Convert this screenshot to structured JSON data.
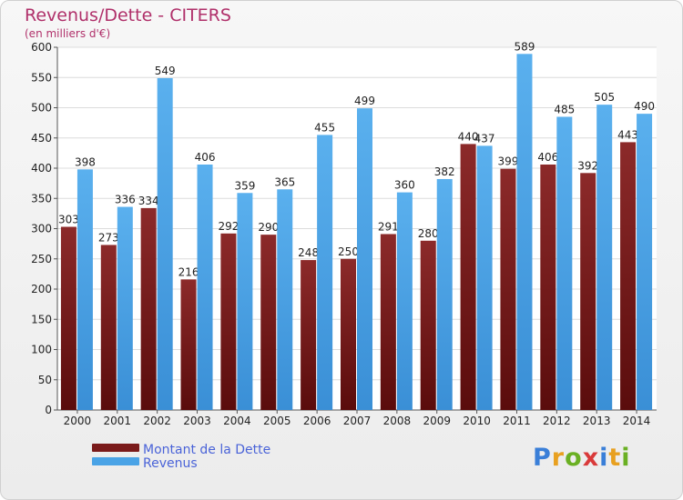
{
  "header": {
    "title": "Revenus/Dette - CITERS",
    "subtitle": "(en milliers d'€)"
  },
  "legend": {
    "items": [
      {
        "label": "Montant de la Dette",
        "color": "#7a1a1a"
      },
      {
        "label": "Revenus",
        "color": "#4aa3e6"
      }
    ]
  },
  "logo": {
    "text": "Proxiti",
    "letter_colors": [
      "#3a7fd8",
      "#e8a020",
      "#6ab023",
      "#d93a3a",
      "#3a7fd8",
      "#e8a020",
      "#6ab023"
    ]
  },
  "chart_data": {
    "type": "bar",
    "categories": [
      "2000",
      "2001",
      "2002",
      "2003",
      "2004",
      "2005",
      "2006",
      "2007",
      "2008",
      "2009",
      "2010",
      "2011",
      "2012",
      "2013",
      "2014"
    ],
    "series": [
      {
        "name": "Montant de la Dette",
        "values": [
          303,
          273,
          334,
          216,
          292,
          290,
          248,
          250,
          291,
          280,
          440,
          399,
          406,
          392,
          443
        ],
        "color": "#7a1a1a"
      },
      {
        "name": "Revenus",
        "values": [
          398,
          336,
          549,
          406,
          359,
          365,
          455,
          499,
          360,
          382,
          437,
          589,
          485,
          505,
          490
        ],
        "color": "#4aa3e6"
      }
    ],
    "ylim": [
      0,
      600
    ],
    "yticks": [
      0,
      50,
      100,
      150,
      200,
      250,
      300,
      350,
      400,
      450,
      500,
      550,
      600
    ],
    "grid": true,
    "legend_position": "bottom-left"
  }
}
